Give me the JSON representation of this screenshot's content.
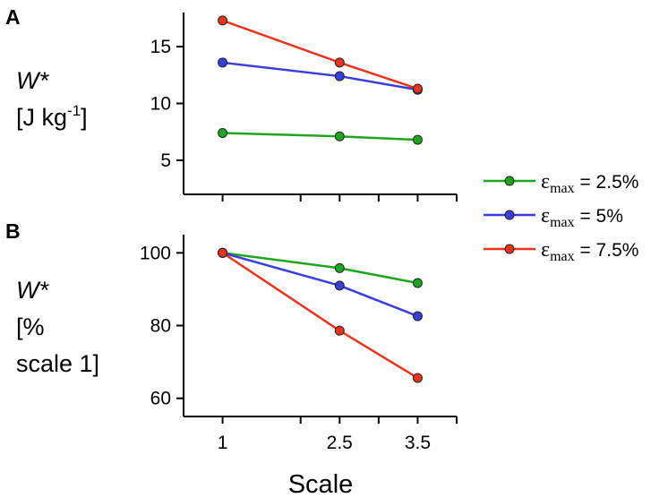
{
  "chart_data": [
    {
      "panel": "A",
      "type": "line",
      "ylabel_var": "W*",
      "ylabel_units_pre": "[J kg",
      "ylabel_units_sup": "-1",
      "ylabel_units_post": "]",
      "x": [
        1,
        2.5,
        3.5
      ],
      "xlim": [
        0.5,
        4
      ],
      "ylim": [
        2,
        18
      ],
      "yticks": [
        5,
        10,
        15
      ],
      "ytick_labels": [
        "5",
        "10",
        "15"
      ],
      "series": [
        {
          "name": "ε_max = 2.5%",
          "color": "#1fa51f",
          "values": [
            7.4,
            7.1,
            6.8
          ]
        },
        {
          "name": "ε_max = 5%",
          "color": "#3a3fd9",
          "values": [
            13.6,
            12.4,
            11.2
          ]
        },
        {
          "name": "ε_max = 7.5%",
          "color": "#e8341c",
          "values": [
            17.3,
            13.6,
            11.3
          ]
        }
      ]
    },
    {
      "panel": "B",
      "type": "line",
      "ylabel_var": "W*",
      "ylabel_units_line1": "[%",
      "ylabel_units_line2": "scale 1]",
      "x": [
        1,
        2.5,
        3.5
      ],
      "xlim": [
        0.5,
        4
      ],
      "ylim": [
        55,
        105
      ],
      "yticks": [
        60,
        80,
        100
      ],
      "ytick_labels": [
        "60",
        "80",
        "100"
      ],
      "xticks": [
        1,
        2.5,
        3.5
      ],
      "xtick_labels": [
        "1",
        "2.5",
        "3.5"
      ],
      "xlabel": "Scale",
      "series": [
        {
          "name": "ε_max = 2.5%",
          "color": "#1fa51f",
          "values": [
            100,
            95.8,
            91.7
          ]
        },
        {
          "name": "ε_max = 5%",
          "color": "#3a3fd9",
          "values": [
            100,
            91.0,
            82.6
          ]
        },
        {
          "name": "ε_max = 7.5%",
          "color": "#e8341c",
          "values": [
            100,
            78.6,
            65.6
          ]
        }
      ]
    }
  ],
  "legend": [
    {
      "symbol": "ε",
      "sub": "max",
      "text": " = 2.5%",
      "color": "#1fa51f"
    },
    {
      "symbol": "ε",
      "sub": "max",
      "text": " = 5%",
      "color": "#3a3fd9"
    },
    {
      "symbol": "ε",
      "sub": "max",
      "text": " = 7.5%",
      "color": "#e8341c"
    }
  ]
}
